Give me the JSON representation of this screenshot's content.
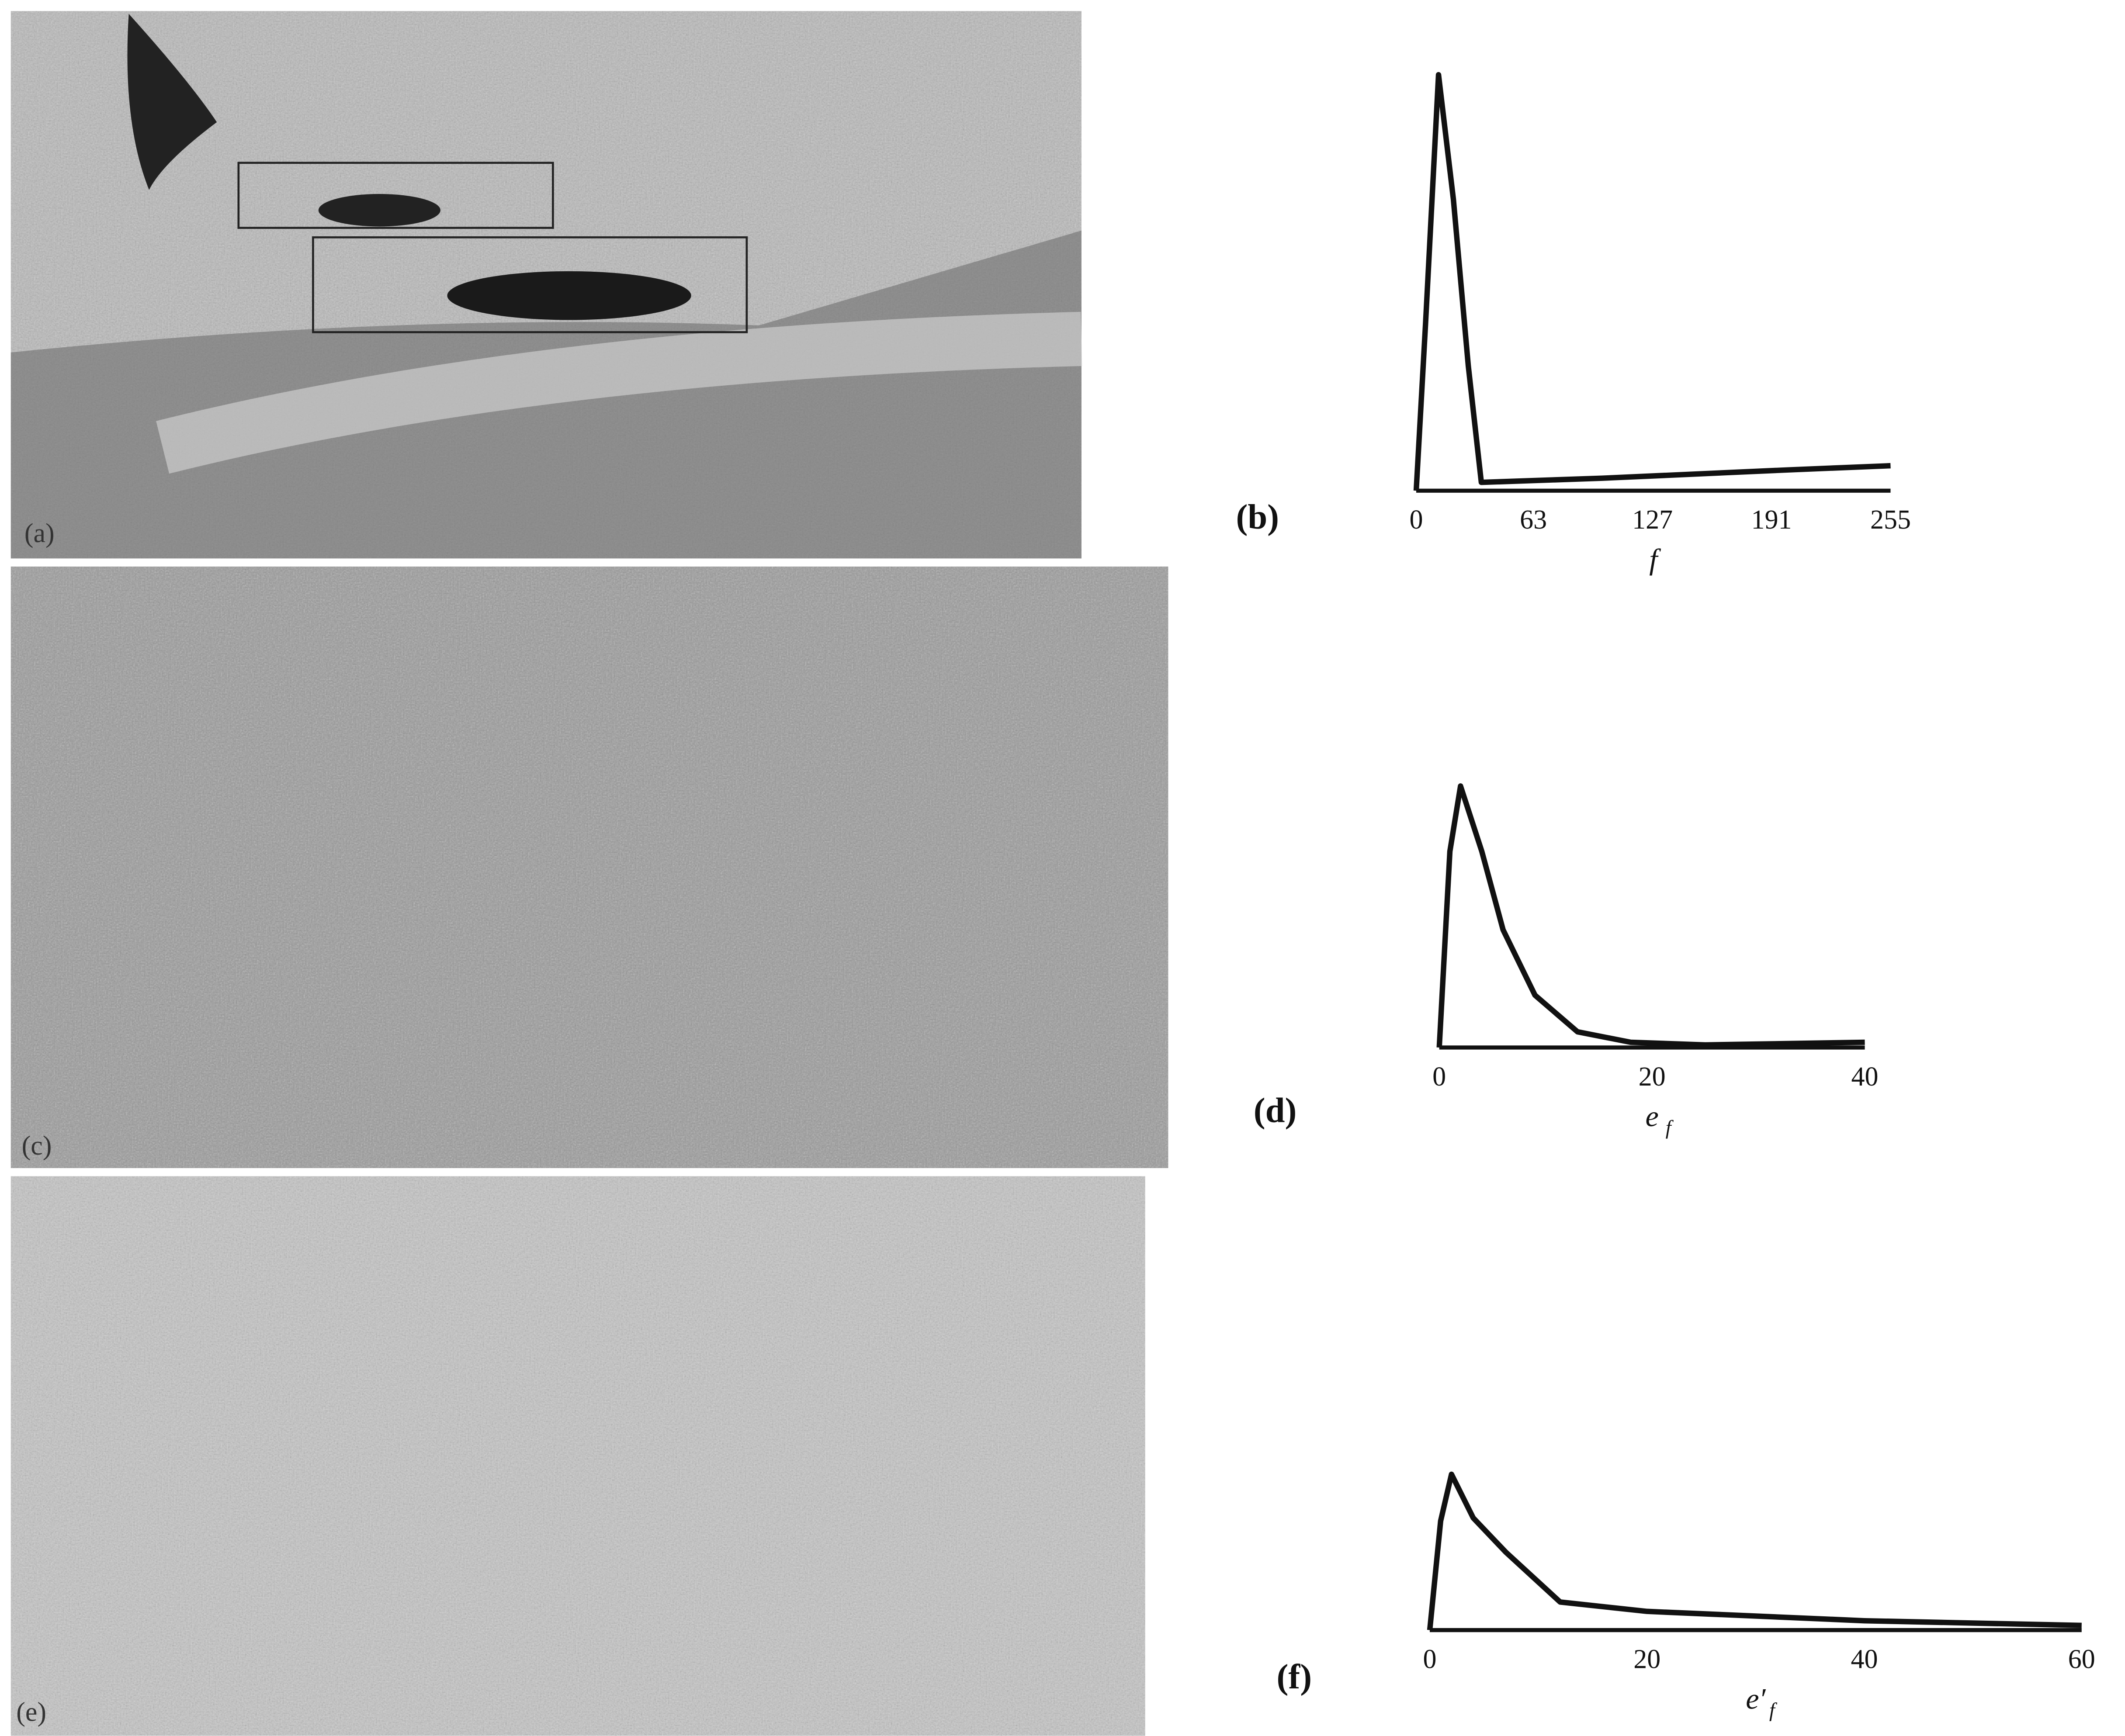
{
  "images": [
    {
      "label": "(a)"
    },
    {
      "label": "(c)"
    },
    {
      "label": "(e)"
    }
  ],
  "chart_data": [
    {
      "type": "line",
      "panel_label": "(b)",
      "xlabel": "f",
      "x": [
        0,
        5,
        12,
        20,
        28,
        35,
        100,
        150,
        200,
        255
      ],
      "values": [
        0,
        0.4,
        1.0,
        0.7,
        0.3,
        0.02,
        0.03,
        0.04,
        0.05,
        0.06
      ],
      "xlim": [
        0,
        255
      ],
      "xticks": [
        0,
        63,
        127,
        191,
        255
      ],
      "ylim": [
        0,
        1
      ],
      "color": "#111"
    },
    {
      "type": "line",
      "panel_label": "(d)",
      "xlabel": "e",
      "xlabel_sub": "f",
      "x": [
        0,
        1,
        2,
        4,
        6,
        9,
        13,
        18,
        25,
        40
      ],
      "values": [
        0,
        0.75,
        1.0,
        0.75,
        0.45,
        0.2,
        0.06,
        0.02,
        0.01,
        0.02
      ],
      "xlim": [
        0,
        40
      ],
      "xticks": [
        0,
        20,
        40
      ],
      "ylim": [
        0,
        1
      ],
      "color": "#111"
    },
    {
      "type": "line",
      "panel_label": "(f)",
      "xlabel": "e′",
      "xlabel_sub": "f",
      "x": [
        0,
        1,
        2,
        4,
        7,
        12,
        20,
        40,
        60
      ],
      "values": [
        0,
        0.7,
        1.0,
        0.72,
        0.5,
        0.18,
        0.12,
        0.06,
        0.03
      ],
      "xlim": [
        0,
        60
      ],
      "xticks": [
        0,
        20,
        40,
        60
      ],
      "ylim": [
        0,
        1
      ],
      "color": "#111"
    }
  ]
}
